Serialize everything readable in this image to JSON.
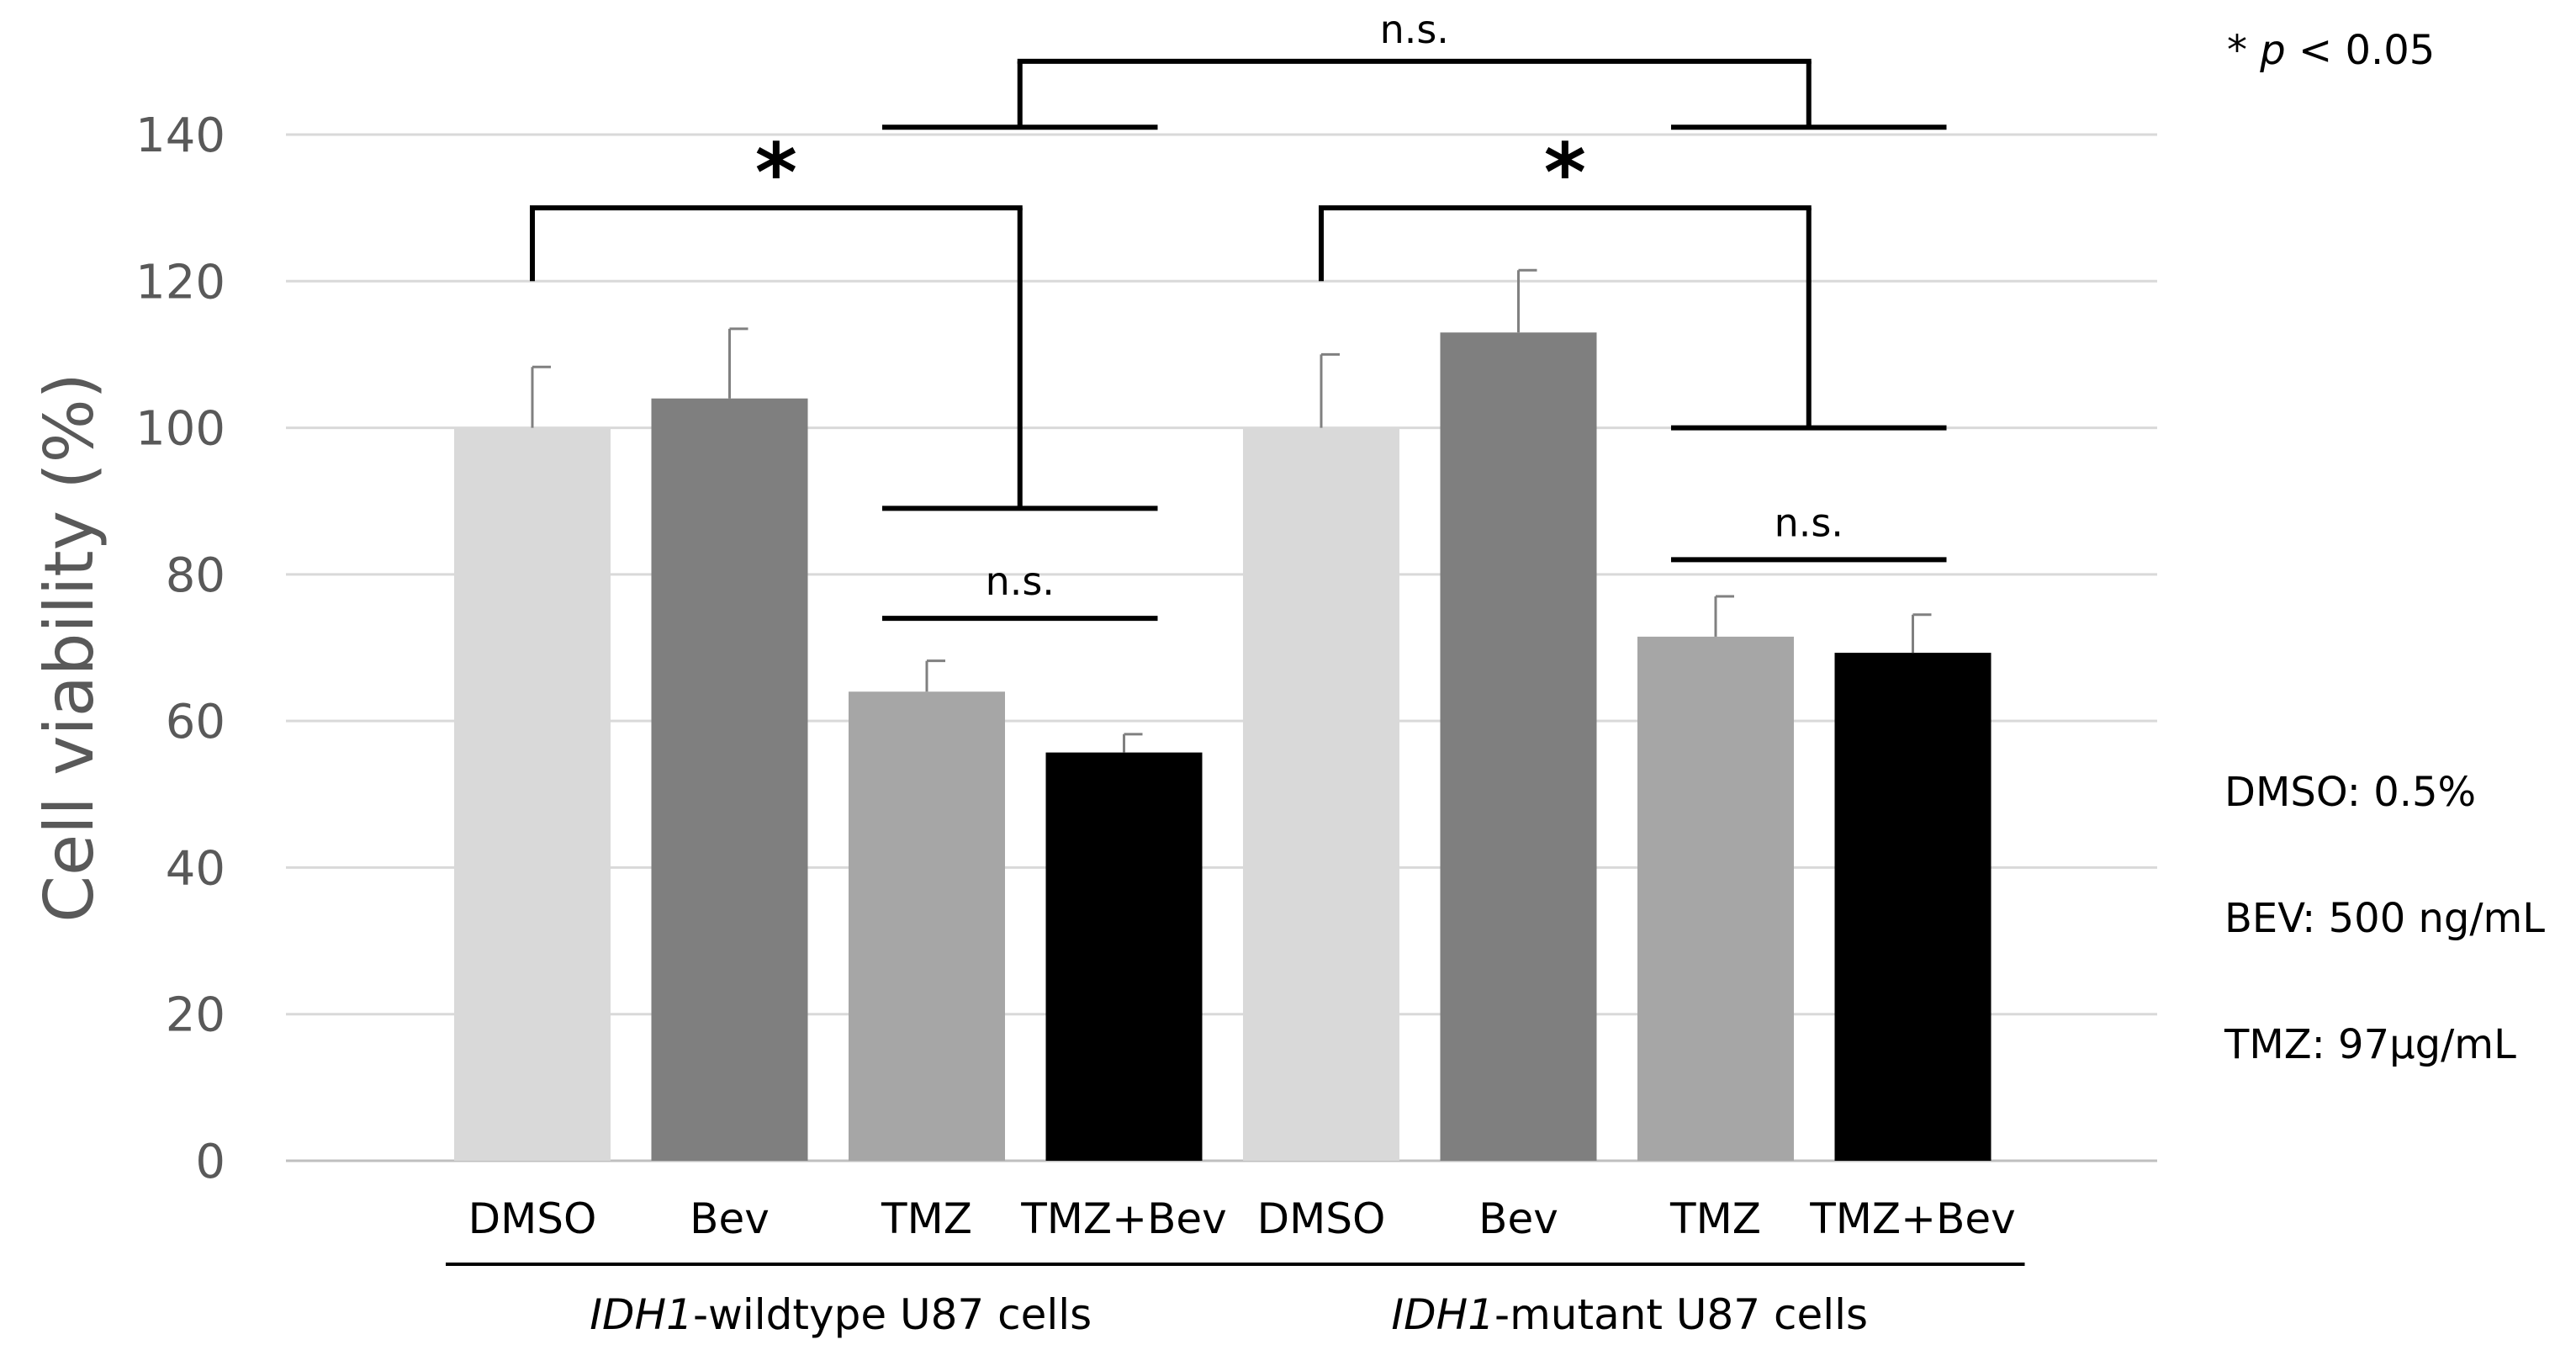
{
  "chart_data": {
    "type": "bar",
    "title": "",
    "xlabel": "",
    "ylabel": "Cell viability (%)",
    "ylim": [
      0,
      140
    ],
    "yticks": [
      0,
      20,
      40,
      60,
      80,
      100,
      120,
      140
    ],
    "grid": true,
    "legend": "none",
    "categories": [
      "DMSO",
      "Bev",
      "TMZ",
      "TMZ+Bev",
      "DMSO",
      "Bev",
      "TMZ",
      "TMZ+Bev"
    ],
    "values": [
      100,
      104,
      64,
      55.7,
      100,
      113,
      71.5,
      69.3
    ],
    "errors": [
      8.3,
      9.5,
      4.2,
      2.5,
      10,
      8.5,
      5.5,
      5.2
    ],
    "bar_colors": [
      "#d9d9d9",
      "#7f7f7f",
      "#a6a6a6",
      "#000000",
      "#d9d9d9",
      "#7f7f7f",
      "#a6a6a6",
      "#000000"
    ],
    "groups": [
      {
        "italic": "IDH1",
        "rest": "-wildtype U87 cells",
        "start": 0,
        "end": 3
      },
      {
        "italic": "IDH1",
        "rest": "-mutant U87 cells",
        "start": 4,
        "end": 7
      }
    ],
    "annotations": [
      {
        "label": "n.s.",
        "kind": "top",
        "left_bar": [
          2,
          3
        ],
        "right_bar": [
          6,
          7
        ],
        "left_y": 141,
        "right_y": 141,
        "top_y": 150
      },
      {
        "label": "*",
        "kind": "bracket",
        "from": 0,
        "to_span": [
          2,
          3
        ],
        "from_y": 120,
        "to_y": 89,
        "top_y": 130
      },
      {
        "label": "*",
        "kind": "bracket",
        "from": 4,
        "to_span": [
          6,
          7
        ],
        "from_y": 120,
        "to_y": 100,
        "top_y": 130
      },
      {
        "label": "n.s.",
        "kind": "line",
        "span": [
          2,
          3
        ],
        "y": 74
      },
      {
        "label": "n.s.",
        "kind": "line",
        "span": [
          6,
          7
        ],
        "y": 82
      }
    ],
    "notes": {
      "significance_prefix": "* ",
      "significance_p": "p",
      "significance_suffix": " < 0.05",
      "conditions": [
        "DMSO: 0.5%",
        "BEV: 500 ng/mL",
        "TMZ: 97µg/mL"
      ]
    }
  }
}
